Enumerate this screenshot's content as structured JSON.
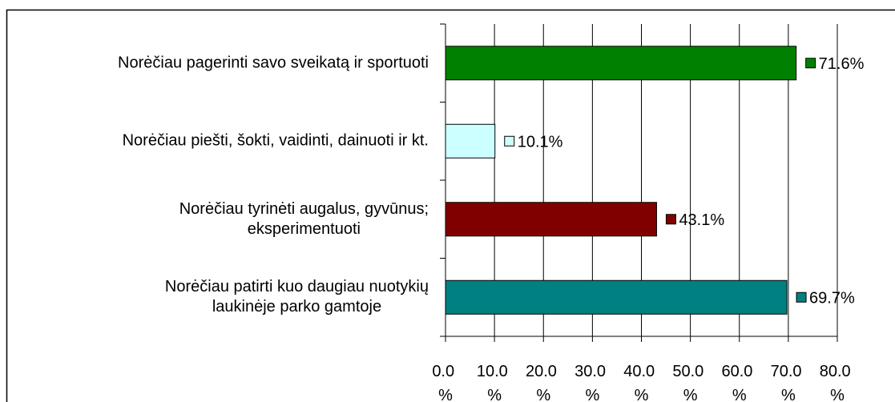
{
  "chart_data": {
    "type": "hbar",
    "categories": [
      "Norėčiau pagerinti savo sveikatą ir sportuoti",
      "Norėčiau piešti, šokti, vaidinti, dainuoti ir kt.",
      "Norėčiau tyrinėti augalus, gyvūnus;\neksperimentuoti",
      "Norėčiau patirti kuo daugiau nuotykių\nlaukinėje parko gamtoje"
    ],
    "values": [
      71.6,
      10.1,
      43.1,
      69.7
    ],
    "value_labels": [
      "71.6%",
      "10.1%",
      "43.1%",
      "69.7%"
    ],
    "colors": [
      "#008000",
      "#ccffff",
      "#800000",
      "#008080"
    ],
    "xlim": [
      0,
      80
    ],
    "xticks": [
      {
        "value": 0,
        "label": "0.0 %"
      },
      {
        "value": 10,
        "label": "10.0 %"
      },
      {
        "value": 20,
        "label": "20.0 %"
      },
      {
        "value": 30,
        "label": "30.0 %"
      },
      {
        "value": 40,
        "label": "40.0 %"
      },
      {
        "value": 50,
        "label": "50.0 %"
      },
      {
        "value": 60,
        "label": "60.0 %"
      },
      {
        "value": 70,
        "label": "70.0 %"
      },
      {
        "value": 80,
        "label": "80.0 %"
      }
    ],
    "grid": true
  }
}
